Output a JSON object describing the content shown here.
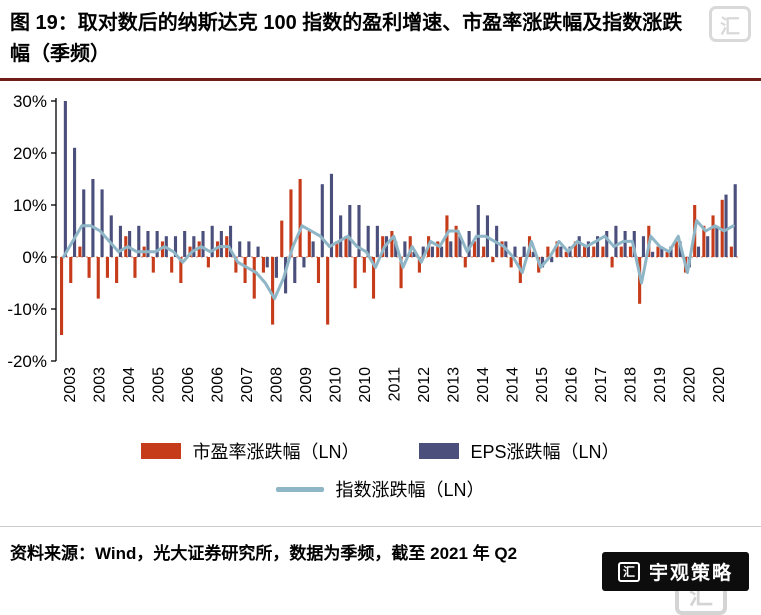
{
  "page": {
    "title": "图 19：取对数后的纳斯达克 100 指数的盈利增速、市盈率涨跌幅及指数涨跌幅（季频）",
    "source_note": "资料来源：Wind，光大证券研究所，数据为季频，截至 2021 年 Q2",
    "accent_rule_color": "#701d18"
  },
  "watermark": {
    "brand_glyph": "汇",
    "badge_label": "宇观策略"
  },
  "legend": [
    {
      "label": "市盈率涨跌幅（LN）",
      "type": "bar",
      "color": "#c63c1b"
    },
    {
      "label": "EPS涨跌幅（LN）",
      "type": "bar",
      "color": "#4b4f7c"
    },
    {
      "label": "指数涨跌幅（LN）",
      "type": "line",
      "color": "#8fb6c6"
    }
  ],
  "chart_data": {
    "type": "bar",
    "title": "取对数后的纳斯达克100指数的盈利增速、市盈率涨跌幅及指数涨跌幅（季频）",
    "xlabel": "",
    "ylabel": "",
    "ylim": [
      -20,
      30
    ],
    "yticks": [
      30,
      20,
      10,
      0,
      -10,
      -20
    ],
    "ytick_suffix": "%",
    "zero_line_style": "dotted",
    "grid": false,
    "legend_position": "bottom",
    "x_tick_rotation": 90,
    "x": [
      "2003Q1",
      "2003Q2",
      "2003Q3",
      "2003Q4",
      "2004Q1",
      "2004Q2",
      "2004Q3",
      "2004Q4",
      "2005Q1",
      "2005Q2",
      "2005Q3",
      "2005Q4",
      "2006Q1",
      "2006Q2",
      "2006Q3",
      "2006Q4",
      "2007Q1",
      "2007Q2",
      "2007Q3",
      "2007Q4",
      "2008Q1",
      "2008Q2",
      "2008Q3",
      "2008Q4",
      "2009Q1",
      "2009Q2",
      "2009Q3",
      "2009Q4",
      "2010Q1",
      "2010Q2",
      "2010Q3",
      "2010Q4",
      "2011Q1",
      "2011Q2",
      "2011Q3",
      "2011Q4",
      "2012Q1",
      "2012Q2",
      "2012Q3",
      "2012Q4",
      "2013Q1",
      "2013Q2",
      "2013Q3",
      "2013Q4",
      "2014Q1",
      "2014Q2",
      "2014Q3",
      "2014Q4",
      "2015Q1",
      "2015Q2",
      "2015Q3",
      "2015Q4",
      "2016Q1",
      "2016Q2",
      "2016Q3",
      "2016Q4",
      "2017Q1",
      "2017Q2",
      "2017Q3",
      "2017Q4",
      "2018Q1",
      "2018Q2",
      "2018Q3",
      "2018Q4",
      "2019Q1",
      "2019Q2",
      "2019Q3",
      "2019Q4",
      "2020Q1",
      "2020Q2",
      "2020Q3",
      "2020Q4",
      "2021Q1",
      "2021Q2"
    ],
    "x_tick_labels": [
      "2003",
      "2003",
      "2004",
      "2005",
      "2006",
      "2006",
      "2007",
      "2008",
      "2009",
      "2010",
      "2010",
      "2011",
      "2012",
      "2013",
      "2014",
      "2014",
      "2015",
      "2016",
      "2017",
      "2018",
      "2019",
      "2020",
      "2020"
    ],
    "series": [
      {
        "name": "市盈率涨跌幅（LN）",
        "type": "bar",
        "color": "#c63c1b",
        "values": [
          -15,
          -5,
          2,
          -4,
          -8,
          -4,
          -5,
          4,
          -4,
          2,
          -3,
          3,
          -3,
          -5,
          2,
          3,
          -2,
          3,
          4,
          -3,
          -5,
          -8,
          -3,
          -13,
          7,
          13,
          15,
          5,
          -5,
          -13,
          3,
          4,
          -6,
          -3,
          -8,
          4,
          5,
          -6,
          4,
          -3,
          4,
          3,
          8,
          6,
          -2,
          3,
          2,
          -1,
          3,
          -2,
          -5,
          4,
          -3,
          2,
          3,
          1,
          3,
          2,
          2,
          2,
          -2,
          2,
          2,
          -9,
          6,
          2,
          1,
          3,
          -3,
          10,
          6,
          8,
          11,
          2
        ]
      },
      {
        "name": "EPS涨跌幅（LN）",
        "type": "bar",
        "color": "#4b4f7c",
        "values": [
          30,
          21,
          13,
          15,
          13,
          8,
          6,
          5,
          6,
          5,
          5,
          4,
          4,
          5,
          4,
          5,
          6,
          5,
          6,
          3,
          3,
          2,
          -2,
          -4,
          -7,
          -5,
          -2,
          3,
          14,
          16,
          8,
          10,
          10,
          6,
          6,
          4,
          3,
          3,
          1,
          2,
          2,
          2,
          3,
          4,
          5,
          10,
          8,
          6,
          3,
          2,
          2,
          1,
          -2,
          -1,
          2,
          2,
          4,
          3,
          4,
          5,
          6,
          5,
          5,
          4,
          1,
          2,
          2,
          3,
          -2,
          2,
          4,
          6,
          12,
          14
        ]
      },
      {
        "name": "指数涨跌幅（LN）",
        "type": "line",
        "color": "#8fb6c6",
        "values": [
          0,
          3,
          6,
          6,
          5,
          3,
          1,
          2,
          1,
          1,
          1,
          2,
          1,
          -1,
          1,
          2,
          1,
          2,
          2,
          -1,
          -2,
          -3,
          -5,
          -8,
          -4,
          2,
          6,
          5,
          4,
          2,
          3,
          4,
          2,
          1,
          -2,
          2,
          4,
          -2,
          2,
          -1,
          3,
          2,
          5,
          5,
          1,
          4,
          4,
          3,
          2,
          0,
          -3,
          3,
          -2,
          0,
          3,
          1,
          3,
          2,
          3,
          4,
          2,
          3,
          3,
          -5,
          4,
          2,
          1,
          4,
          -3,
          7,
          5,
          6,
          5,
          6
        ]
      }
    ]
  }
}
